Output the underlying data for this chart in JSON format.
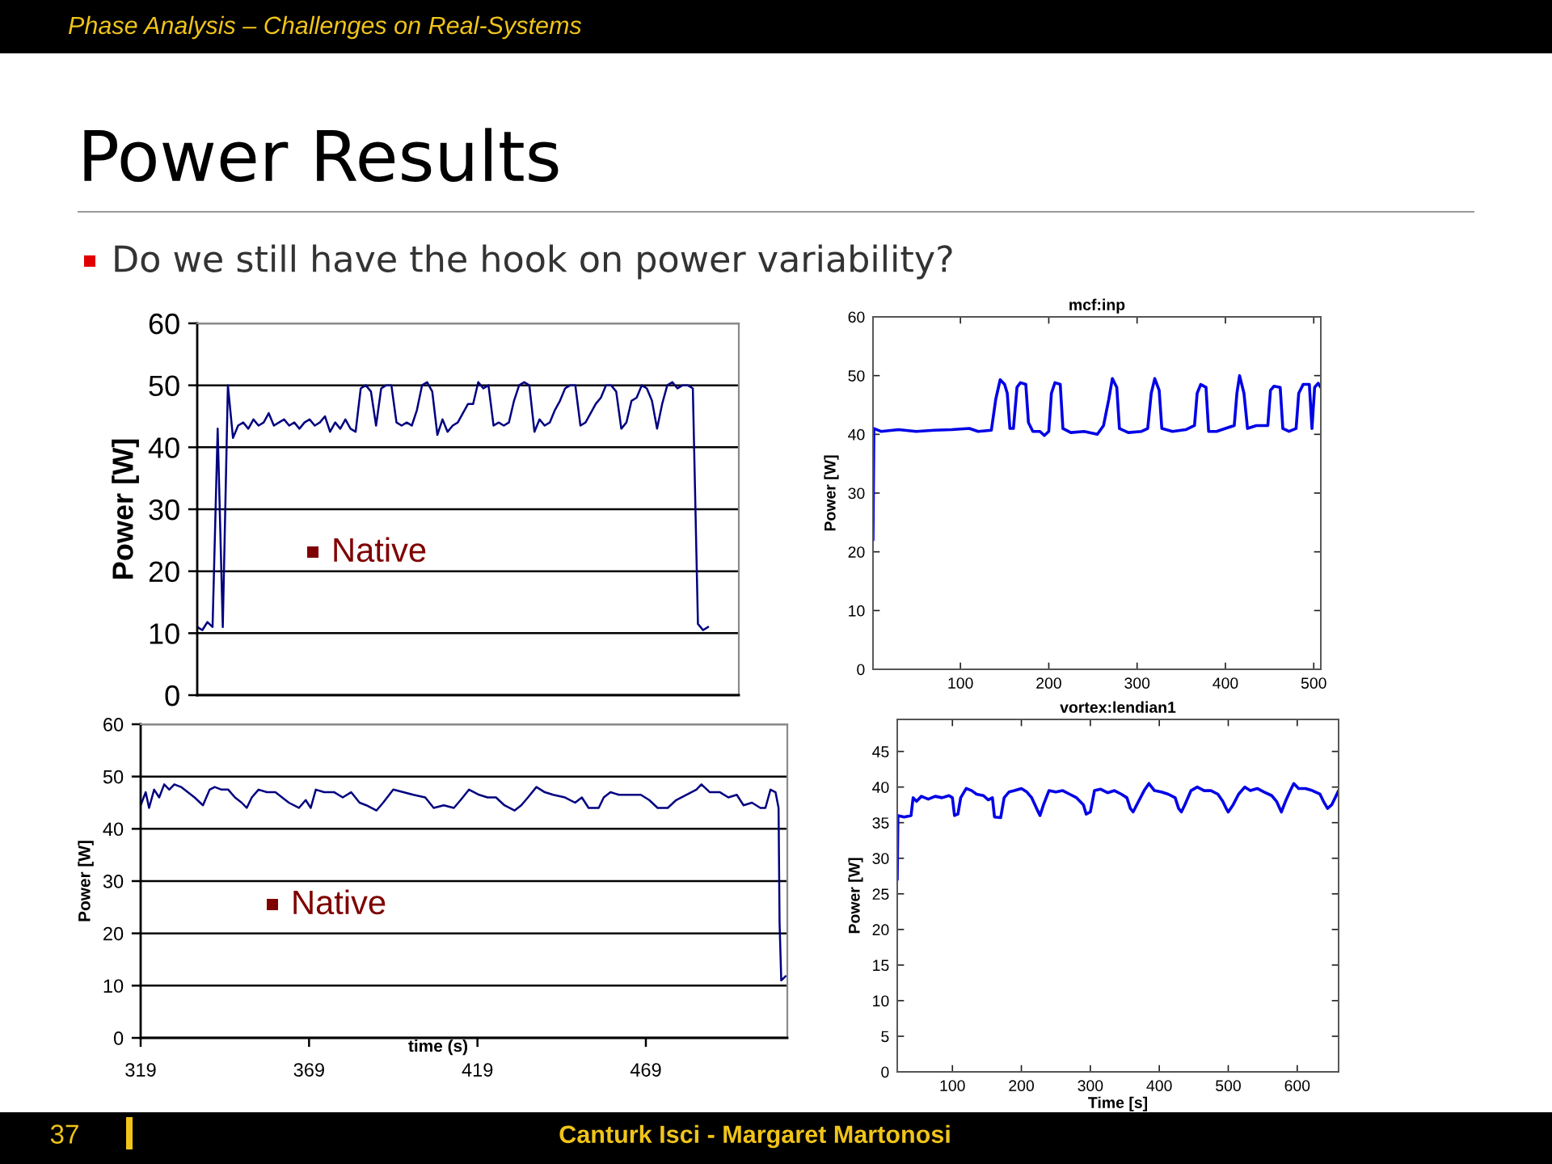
{
  "chart_data": [
    {
      "type": "line",
      "title": "Power Results",
      "subtitle": "Do we still have the hook on power variability?",
      "ylabel": "Power [W]",
      "categories": [
        null,
        null,
        null,
        null,
        null,
        null,
        null,
        null,
        null,
        null,
        null,
        null,
        null,
        null,
        null,
        null,
        null,
        null,
        null,
        null,
        null,
        null,
        null,
        null,
        null,
        null,
        null,
        null,
        null,
        null,
        null,
        null,
        null,
        null,
        null,
        null,
        null,
        null,
        null,
        null,
        null,
        null,
        null,
        null,
        null,
        null,
        null,
        null,
        null,
        null,
        null,
        null,
        null,
        null,
        null,
        null,
        null,
        null,
        null,
        null,
        null,
        null,
        null,
        null,
        null,
        null,
        null,
        null,
        null,
        null,
        null,
        null,
        null,
        null,
        null,
        null,
        null,
        null,
        null,
        null,
        null,
        null,
        null,
        null,
        null,
        null,
        null,
        null,
        null,
        null,
        null,
        null,
        null,
        null,
        null,
        null,
        null,
        null,
        null,
        null,
        null,
        null,
        null,
        null,
        null,
        null,
        null
      ],
      "series": [
        {
          "color": "#000080",
          "values": [
            11,
            10.5,
            11.8,
            11,
            43,
            11,
            50,
            41.5,
            43.5,
            44,
            43,
            44.5,
            43.5,
            44,
            45.5,
            43.5,
            44,
            44.5,
            43.5,
            44,
            43,
            44,
            44.5,
            43.5,
            44,
            45,
            42.5,
            44,
            43,
            44.5,
            43,
            42.5,
            49.5,
            50,
            49,
            43.5,
            49.5,
            50,
            50,
            44,
            43.5,
            44,
            43.5,
            46,
            50,
            50.5,
            49,
            42,
            44.5,
            42.5,
            43.5,
            44,
            45.5,
            47,
            47,
            50.5,
            49.5,
            50,
            43.5,
            44,
            43.5,
            44,
            47.5,
            50,
            50.5,
            50,
            42.5,
            44.5,
            43.5,
            44,
            46,
            47.5,
            49.5,
            50,
            50,
            43.5,
            44,
            45.5,
            47,
            48,
            50,
            50,
            49,
            43,
            44,
            47.5,
            48,
            50,
            49.5,
            47.5,
            43,
            47,
            50,
            50.5,
            49.5,
            50,
            50,
            49.5,
            11.5,
            10.5,
            11,
            null,
            null,
            null,
            null,
            null,
            null
          ]
        }
      ],
      "ylim": [
        0,
        60
      ],
      "yticks": [
        0,
        10,
        20,
        30,
        40,
        50,
        60
      ],
      "grid": "y",
      "tick_labels": "y",
      "annotations": [
        "Phase Analysis – Challenges on Real-Systems",
        "37",
        "Canturk Isci - Margaret Martonosi",
        "Native"
      ]
    },
    {
      "type": "line",
      "title": "mcf:inp",
      "ylabel": "Power [W]",
      "x": [
        1,
        2,
        10,
        30,
        50,
        70,
        90,
        110,
        120,
        135,
        140,
        145,
        150,
        153,
        156,
        160,
        164,
        168,
        174,
        177,
        182,
        190,
        195,
        200,
        203,
        207,
        213,
        216,
        225,
        240,
        255,
        262,
        268,
        272,
        277,
        280,
        290,
        305,
        312,
        316,
        320,
        325,
        328,
        340,
        355,
        365,
        368,
        372,
        378,
        381,
        390,
        400,
        410,
        413,
        416,
        421,
        425,
        435,
        448,
        451,
        455,
        462,
        465,
        472,
        480,
        483,
        488,
        495,
        498,
        501,
        505,
        508
      ],
      "series": [
        {
          "color": "#0000e6",
          "values": [
            22,
            41,
            40.5,
            40.8,
            40.5,
            40.7,
            40.8,
            41,
            40.5,
            40.7,
            46,
            49.3,
            48.5,
            47,
            41,
            41,
            48,
            48.8,
            48.5,
            42,
            40.5,
            40.5,
            39.8,
            40.5,
            47,
            48.8,
            48.5,
            41,
            40.3,
            40.5,
            40,
            41.5,
            46,
            49.5,
            48,
            41,
            40.3,
            40.5,
            41,
            47,
            49.5,
            47.5,
            41,
            40.5,
            40.8,
            41.5,
            47,
            48.5,
            48,
            40.5,
            40.5,
            41,
            41.5,
            47,
            50,
            47,
            41,
            41.5,
            41.5,
            47.5,
            48.2,
            48,
            41,
            40.5,
            41,
            47,
            48.5,
            48.5,
            41,
            48,
            48.7,
            48
          ]
        }
      ],
      "xlim": [
        1,
        508
      ],
      "xticks": [
        100,
        200,
        300,
        400,
        500
      ],
      "ylim": [
        0,
        60
      ],
      "yticks": [
        0,
        10,
        20,
        30,
        40,
        50,
        60
      ]
    },
    {
      "type": "line",
      "xlabel": "time (s)",
      "ylabel": "Power [W]",
      "x": [
        319,
        320.5,
        321.5,
        323,
        324.5,
        326,
        327.5,
        329,
        331,
        333,
        335,
        337.5,
        339.5,
        341,
        343,
        345,
        347,
        349,
        350.5,
        352,
        354,
        356.5,
        359,
        361,
        363,
        366,
        368,
        369.5,
        371,
        373.5,
        376.5,
        379,
        381.5,
        384,
        386,
        389,
        391,
        394,
        397,
        400,
        403.5,
        406,
        409,
        412,
        414,
        416.5,
        419.5,
        422,
        424.5,
        427,
        430,
        432,
        434,
        436.5,
        439,
        441.5,
        445,
        448,
        450,
        452,
        455,
        456.5,
        458.5,
        461,
        464,
        467.5,
        470,
        472.5,
        475.5,
        478,
        481,
        484,
        485.5,
        488,
        491,
        493.5,
        496,
        498,
        500.5,
        503,
        504.5,
        506,
        507.5,
        508.4,
        508.7,
        509.2,
        510.5
      ],
      "series": [
        {
          "color": "#000080",
          "values": [
            44.5,
            47,
            44,
            47.5,
            46,
            48.5,
            47.5,
            48.5,
            48,
            47,
            46,
            44.5,
            47.5,
            48,
            47.5,
            47.5,
            46,
            45,
            44,
            46,
            47.5,
            47,
            47,
            46,
            45,
            44,
            45.5,
            44,
            47.5,
            47,
            47,
            46,
            47,
            45,
            44.5,
            43.5,
            45,
            47.5,
            47,
            46.5,
            46,
            44,
            44.5,
            44,
            45.5,
            47.5,
            46.5,
            46,
            46,
            44.5,
            43.5,
            44.5,
            46,
            48,
            47,
            46.5,
            46,
            45,
            46,
            44,
            44,
            46,
            47,
            46.5,
            46.5,
            46.5,
            45.5,
            44,
            44,
            45.5,
            46.5,
            47.5,
            48.5,
            47,
            47,
            46,
            46.5,
            44.5,
            45,
            44,
            44,
            47.5,
            47,
            44,
            22,
            11,
            11.8
          ]
        }
      ],
      "xlim": [
        319,
        511
      ],
      "xticks": [
        319,
        369,
        419,
        469
      ],
      "ylim": [
        0,
        60
      ],
      "yticks": [
        0,
        10,
        20,
        30,
        40,
        50,
        60
      ],
      "grid": "y",
      "annotations": [
        "Native"
      ]
    },
    {
      "type": "line",
      "title": "vortex:lendian1",
      "xlabel": "Time [s]",
      "ylabel": "Power [W]",
      "x": [
        20,
        21,
        30,
        40,
        43,
        48,
        55,
        65,
        75,
        85,
        95,
        100,
        103,
        108,
        112,
        120,
        128,
        135,
        145,
        152,
        158,
        161,
        170,
        175,
        182,
        190,
        200,
        208,
        215,
        222,
        227,
        232,
        240,
        250,
        260,
        270,
        280,
        290,
        294,
        300,
        306,
        315,
        325,
        335,
        345,
        353,
        358,
        362,
        370,
        378,
        385,
        393,
        403,
        413,
        423,
        428,
        432,
        437,
        446,
        455,
        465,
        475,
        485,
        492,
        497,
        500,
        507,
        515,
        524,
        532,
        542,
        552,
        563,
        570,
        577,
        583,
        590,
        595,
        602,
        612,
        622,
        633,
        638,
        644,
        650,
        655,
        660
      ],
      "series": [
        {
          "color": "#0000e6",
          "values": [
            27,
            36,
            35.8,
            36,
            38.5,
            38,
            38.7,
            38.3,
            38.7,
            38.5,
            38.8,
            38.5,
            36,
            36.2,
            38.5,
            39.8,
            39.5,
            39,
            38.8,
            38.2,
            38.5,
            35.8,
            35.7,
            38.5,
            39.3,
            39.5,
            39.8,
            39.3,
            38.5,
            37,
            36,
            37.5,
            39.5,
            39.3,
            39.5,
            39,
            38.5,
            37.5,
            36.2,
            36.5,
            39.5,
            39.7,
            39.2,
            39.5,
            39,
            38.5,
            37,
            36.5,
            38,
            39.5,
            40.5,
            39.5,
            39.3,
            39,
            38.5,
            37,
            36.5,
            37.5,
            39.5,
            40,
            39.5,
            39.5,
            39,
            38,
            37,
            36.5,
            37.5,
            39,
            40,
            39.5,
            39.8,
            39.3,
            38.8,
            38,
            36.5,
            38,
            39.5,
            40.5,
            39.8,
            39.8,
            39.5,
            39,
            38,
            37,
            37.5,
            38.5,
            39.5
          ]
        }
      ],
      "xlim": [
        20,
        660
      ],
      "xticks": [
        100,
        200,
        300,
        400,
        500,
        600
      ],
      "ylim": [
        0,
        49.5
      ],
      "yticks": [
        0,
        5,
        10,
        15,
        20,
        25,
        30,
        35,
        40,
        45
      ]
    }
  ]
}
